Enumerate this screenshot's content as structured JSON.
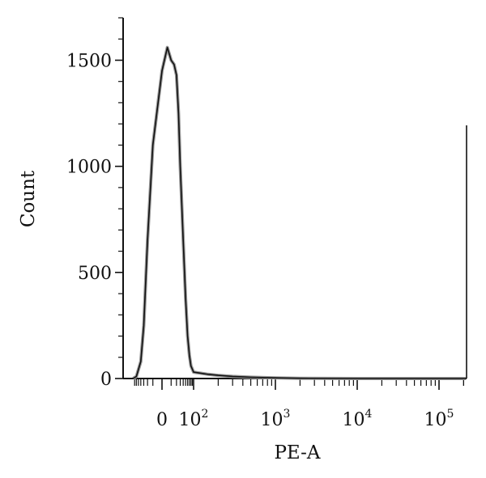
{
  "chart_data": {
    "type": "area",
    "title": "",
    "xlabel": "PE-A",
    "ylabel": "Count",
    "x_scale": "biexponential",
    "ylim": [
      0,
      1700
    ],
    "y_ticks": [
      {
        "value": 0,
        "label": "0"
      },
      {
        "value": 500,
        "label": "500"
      },
      {
        "value": 1000,
        "label": "1000"
      },
      {
        "value": 1500,
        "label": "1500"
      }
    ],
    "x_ticks": [
      {
        "value": 0,
        "base": "0",
        "exp": ""
      },
      {
        "value": 100,
        "base": "10",
        "exp": "2"
      },
      {
        "value": 1000,
        "base": "10",
        "exp": "3"
      },
      {
        "value": 10000,
        "base": "10",
        "exp": "4"
      },
      {
        "value": 100000,
        "base": "10",
        "exp": "5"
      }
    ],
    "grid": false,
    "series": [
      {
        "x": [
          -80,
          -60,
          -40,
          -30,
          -20,
          -10,
          0,
          5,
          10,
          15,
          20,
          25,
          30,
          40,
          50,
          60,
          70,
          80,
          100,
          150,
          200,
          300,
          500,
          1000,
          2000,
          10000,
          100000,
          250000
        ],
        "y": [
          0,
          10,
          80,
          250,
          650,
          1100,
          1450,
          1560,
          1500,
          1480,
          1430,
          1250,
          1000,
          650,
          380,
          200,
          110,
          60,
          30,
          20,
          15,
          10,
          6,
          3,
          1,
          0,
          0,
          0
        ]
      }
    ]
  }
}
